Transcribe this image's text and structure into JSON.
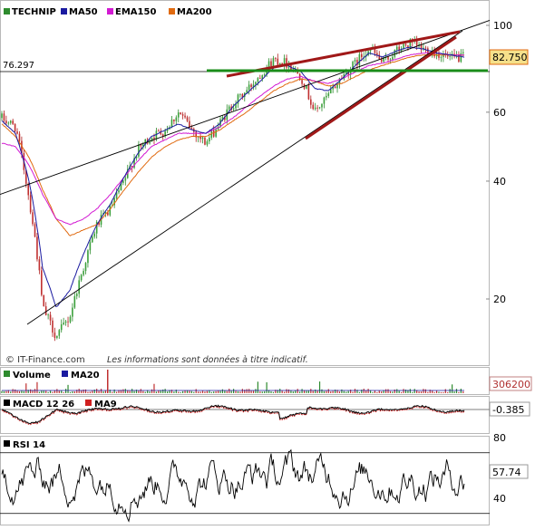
{
  "chart_data": [
    {
      "type": "line",
      "panel": "price",
      "title": "TECHNIP",
      "scale": "log",
      "ylim": [
        13,
        120
      ],
      "y_ticks": [
        20,
        40,
        60,
        100
      ],
      "ref_level": "76.297",
      "last_value": "82.750",
      "legend": [
        "TECHNIP",
        "MA50",
        "EMA150",
        "MA200"
      ],
      "legend_placement": "top-left",
      "series_colors": {
        "TECHNIP": "#2e8b2e",
        "MA50": "#1a1aa0",
        "EMA150": "#d21ad2",
        "MA200": "#e06a10"
      },
      "price_anchors": [
        58,
        55,
        36,
        19,
        16,
        18,
        24,
        31,
        34,
        40,
        48,
        52,
        54,
        60,
        54,
        50,
        56,
        63,
        68,
        75,
        82,
        80,
        74,
        60,
        66,
        74,
        80,
        88,
        80,
        86,
        90,
        87,
        85,
        82,
        83
      ],
      "ma50_anchors": [
        57,
        53,
        40,
        24,
        19,
        21,
        26,
        31,
        35,
        41,
        47,
        52,
        54,
        56,
        54,
        53,
        56,
        62,
        67,
        72,
        78,
        79,
        76,
        69,
        68,
        73,
        79,
        85,
        83,
        86,
        88,
        87,
        85,
        84,
        83
      ],
      "ema150_anchors": [
        50,
        49,
        44,
        37,
        32,
        31,
        32,
        34,
        37,
        41,
        45,
        49,
        51,
        53,
        53,
        53,
        55,
        58,
        62,
        66,
        70,
        73,
        74,
        72,
        71,
        73,
        76,
        79,
        80,
        82,
        84,
        85,
        85,
        84,
        84
      ],
      "ma200_anchors": [
        56,
        52,
        46,
        38,
        32,
        29,
        30,
        31,
        34,
        38,
        42,
        46,
        49,
        51,
        52,
        52,
        54,
        57,
        60,
        64,
        68,
        71,
        73,
        72,
        70,
        71,
        74,
        77,
        79,
        81,
        83,
        84,
        84,
        84,
        84
      ],
      "support_level": 76.3,
      "trendlines": [
        {
          "name": "long-term-uptrend",
          "color": "#000000",
          "from_value": 37,
          "to_value": 103
        },
        {
          "name": "wedge-upper",
          "color": "#a01818",
          "from_value": 76.3,
          "to_value": 97
        },
        {
          "name": "wedge-lower",
          "color": "#a01818",
          "from_value": 55,
          "to_value": 96
        },
        {
          "name": "support",
          "color": "#1a8c1a",
          "value": 76.3
        }
      ],
      "footer_brand": "© IT-Finance.com",
      "footer_note": "Les informations sont données à titre indicatif."
    },
    {
      "type": "bar",
      "panel": "volume",
      "legend": [
        "Volume",
        "MA20"
      ],
      "last_value": "306200",
      "colors": {
        "volume": "#2e8b2e",
        "ma20": "#1a1aa0"
      }
    },
    {
      "type": "line",
      "panel": "macd",
      "legend": [
        "MACD 12 26",
        "MA9"
      ],
      "last_value": "-0.385",
      "colors": {
        "macd": "#000000",
        "signal": "#d02020"
      }
    },
    {
      "type": "line",
      "panel": "rsi",
      "legend": [
        "RSI 14"
      ],
      "ylim": [
        20,
        90
      ],
      "y_ticks": [
        40,
        80
      ],
      "levels": [
        30,
        70
      ],
      "last_value": "57.74",
      "colors": {
        "rsi": "#000000"
      }
    }
  ]
}
